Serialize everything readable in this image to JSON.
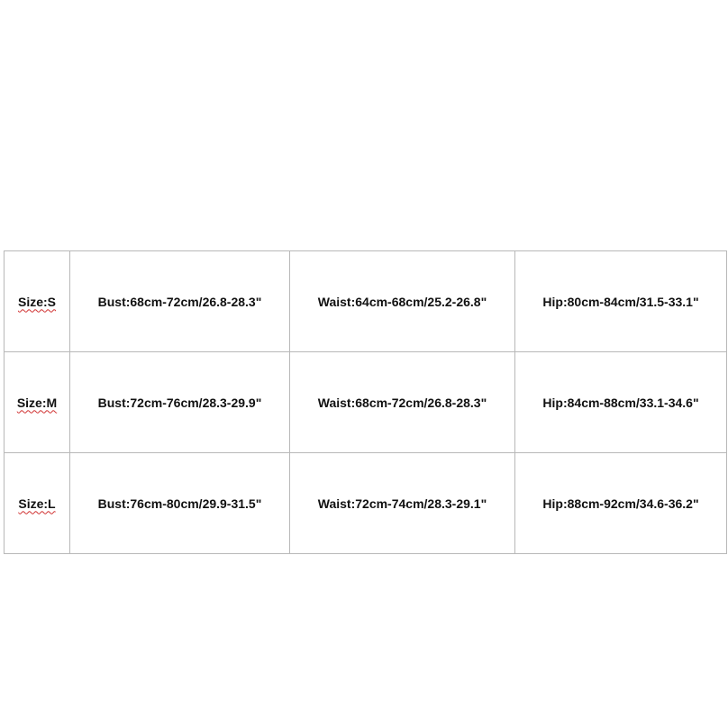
{
  "size_chart": {
    "rows": [
      {
        "size": "Size:S",
        "bust": "Bust:68cm-72cm/26.8-28.3\"",
        "waist": "Waist:64cm-68cm/25.2-26.8\"",
        "hip": "Hip:80cm-84cm/31.5-33.1\""
      },
      {
        "size": "Size:M",
        "bust": "Bust:72cm-76cm/28.3-29.9\"",
        "waist": "Waist:68cm-72cm/26.8-28.3\"",
        "hip": "Hip:84cm-88cm/33.1-34.6\""
      },
      {
        "size": "Size:L",
        "bust": "Bust:76cm-80cm/29.9-31.5\"",
        "waist": "Waist:72cm-74cm/28.3-29.1\"",
        "hip": "Hip:88cm-92cm/34.6-36.2\""
      }
    ]
  },
  "colors": {
    "border": "#b8b8b8",
    "text": "#111111",
    "spellcheck_underline": "#d03030"
  }
}
